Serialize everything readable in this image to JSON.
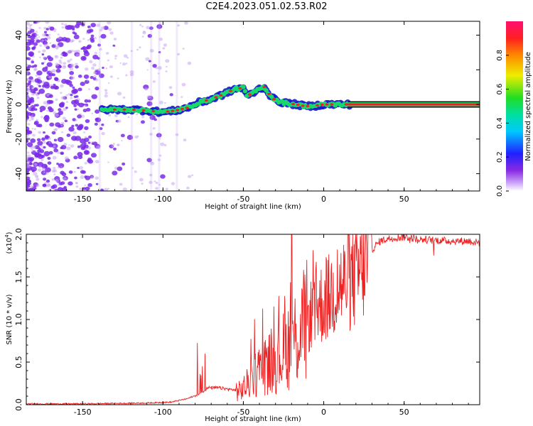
{
  "title": "C2E4.2023.051.02.53.R02",
  "colors": {
    "snr_line": "#ee2222",
    "scatter": "#7a2be8",
    "scatter_light": "#c9a6f2",
    "ridge_fill": "#18d86a",
    "ridge_edge": "#1a1acc",
    "ridge_core": "#ee2020"
  },
  "chart_data": [
    {
      "type": "heatmap",
      "name": "spectrogram",
      "xlabel": "Height of straight line (km)",
      "ylabel": "Frequency (Hz)",
      "xlim": [
        -185,
        97
      ],
      "ylim": [
        -50,
        48
      ],
      "xticks": [
        -150,
        -100,
        -50,
        0,
        50
      ],
      "xtick_labels": [
        "-150",
        "-100",
        "-50",
        "0",
        "50"
      ],
      "yticks": [
        40,
        20,
        0,
        -20,
        -40
      ],
      "ytick_labels": [
        "40",
        "20",
        "0",
        "-20",
        "-40"
      ],
      "ridge": {
        "x": [
          -138,
          -130,
          -120,
          -110,
          -100,
          -92,
          -85,
          -78,
          -70,
          -62,
          -55,
          -50,
          -48,
          -45,
          -42,
          -40,
          -37,
          -34,
          -31,
          -27,
          -22,
          -17,
          -12,
          -7,
          0,
          5,
          10,
          15,
          20,
          30,
          40,
          50,
          60,
          70,
          80,
          90,
          97
        ],
        "y": [
          -3,
          -3,
          -3,
          -3.5,
          -4.5,
          -3.5,
          -2,
          1,
          3,
          6,
          9,
          9.5,
          5,
          6,
          8,
          9,
          10,
          6,
          3,
          1.5,
          0.5,
          0,
          -1,
          -1,
          0,
          0,
          0,
          0,
          0,
          0,
          0,
          0,
          0,
          0,
          0,
          0,
          0
        ]
      },
      "colorbar": {
        "label": "Normalized spectral amplitude",
        "range": [
          0,
          1
        ],
        "ticks": [
          0.0,
          0.2,
          0.4,
          0.6,
          0.8
        ],
        "tick_labels": [
          "0.0",
          "0.2",
          "0.4",
          "0.6",
          "0.8"
        ]
      }
    },
    {
      "type": "line",
      "name": "snr",
      "xlabel": "Height of straight line (km)",
      "ylabel": "SNR (10 * v/v)",
      "y_multiplier": "(x10",
      "y_multiplier_exp": "4",
      "xlim": [
        -185,
        97
      ],
      "ylim": [
        0,
        2.0
      ],
      "xticks": [
        -150,
        -100,
        -50,
        0,
        50
      ],
      "xtick_labels": [
        "-150",
        "-100",
        "-50",
        "0",
        "50"
      ],
      "yticks": [
        0.0,
        0.5,
        1.0,
        1.5,
        2.0
      ],
      "ytick_labels": [
        "0.0",
        "0.5",
        "1.0",
        "1.5",
        "2.0"
      ],
      "envelope": {
        "x": [
          -185,
          -150,
          -110,
          -95,
          -85,
          -78,
          -72,
          -65,
          -58,
          -52,
          -48,
          -44,
          -40,
          -36,
          -32,
          -28,
          -24,
          -20,
          -16,
          -12,
          -8,
          -4,
          0,
          5,
          10,
          15,
          20,
          25,
          30,
          35,
          40,
          50,
          60,
          70,
          80,
          90,
          97
        ],
        "y": [
          0.01,
          0.01,
          0.02,
          0.03,
          0.07,
          0.12,
          0.2,
          0.2,
          0.18,
          0.17,
          0.25,
          0.35,
          0.45,
          0.5,
          0.55,
          0.6,
          0.7,
          0.8,
          0.9,
          1.0,
          1.1,
          1.2,
          1.25,
          1.35,
          1.45,
          1.5,
          1.55,
          1.7,
          1.82,
          1.92,
          1.95,
          1.97,
          1.94,
          1.93,
          1.92,
          1.92,
          1.9
        ]
      },
      "spike_max": {
        "x": -20,
        "y": 2.0
      }
    }
  ]
}
